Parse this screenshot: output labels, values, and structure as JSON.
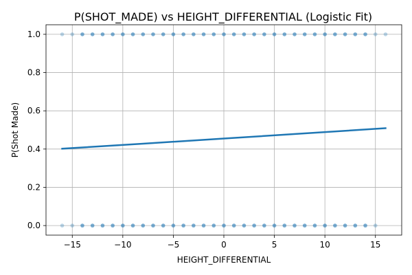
{
  "chart_data": {
    "type": "scatter",
    "title": "P(SHOT_MADE) vs HEIGHT_DIFFERENTIAL (Logistic Fit)",
    "xlabel": "HEIGHT_DIFFERENTIAL",
    "ylabel": "P(Shot Made)",
    "xlim": [
      -17.6,
      17.6
    ],
    "ylim": [
      -0.05,
      1.05
    ],
    "xticks": [
      -15,
      -10,
      -5,
      0,
      5,
      10,
      15
    ],
    "xtick_labels": [
      "−15",
      "−10",
      "−5",
      "0",
      "5",
      "10",
      "15"
    ],
    "yticks": [
      0.0,
      0.2,
      0.4,
      0.6,
      0.8,
      1.0
    ],
    "ytick_labels": [
      "0.0",
      "0.2",
      "0.4",
      "0.6",
      "0.8",
      "1.0"
    ],
    "grid": true,
    "colors": {
      "points": "#1f77b4",
      "fit_line": "#1f77b4",
      "grid": "#b0b0b0"
    },
    "series": [
      {
        "kind": "scatter",
        "x": [
          -16,
          -15,
          -14,
          -13,
          -12,
          -11,
          -10,
          -9,
          -8,
          -7,
          -6,
          -5,
          -4,
          -3,
          -2,
          -1,
          0,
          1,
          2,
          3,
          4,
          5,
          6,
          7,
          8,
          9,
          10,
          11,
          12,
          13,
          14,
          15,
          16,
          -16,
          -15,
          -14,
          -13,
          -12,
          -11,
          -10,
          -9,
          -8,
          -7,
          -6,
          -5,
          -4,
          -3,
          -2,
          -1,
          0,
          1,
          2,
          3,
          4,
          5,
          6,
          7,
          8,
          9,
          10,
          11,
          12,
          13,
          14,
          15
        ],
        "y": [
          1,
          1,
          1,
          1,
          1,
          1,
          1,
          1,
          1,
          1,
          1,
          1,
          1,
          1,
          1,
          1,
          1,
          1,
          1,
          1,
          1,
          1,
          1,
          1,
          1,
          1,
          1,
          1,
          1,
          1,
          1,
          1,
          1,
          0,
          0,
          0,
          0,
          0,
          0,
          0,
          0,
          0,
          0,
          0,
          0,
          0,
          0,
          0,
          0,
          0,
          0,
          0,
          0,
          0,
          0,
          0,
          0,
          0,
          0,
          0,
          0,
          0,
          0,
          0,
          0
        ]
      },
      {
        "kind": "line",
        "x": [
          -16,
          -8,
          0,
          8,
          16
        ],
        "y": [
          0.402,
          0.428,
          0.455,
          0.482,
          0.509
        ]
      }
    ]
  }
}
